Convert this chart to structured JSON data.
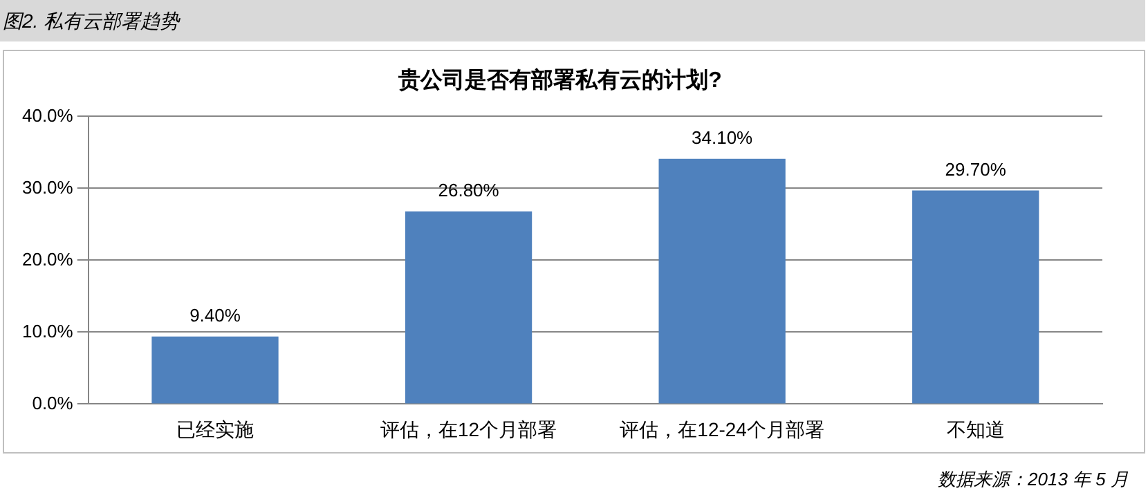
{
  "chart_data": {
    "type": "bar",
    "title": "贵公司是否有部署私有云的计划?",
    "categories": [
      "已经实施",
      "评估，在12个月部署",
      "评估，在12-24个月部署",
      "不知道"
    ],
    "values": [
      9.4,
      26.8,
      34.1,
      29.7
    ],
    "value_labels": [
      "9.40%",
      "26.80%",
      "34.10%",
      "29.70%"
    ],
    "color": "#4f81bd",
    "ylim": [
      0,
      40
    ],
    "yticks": [
      {
        "value": 0,
        "label": "0.0%"
      },
      {
        "value": 10,
        "label": "10.0%"
      },
      {
        "value": 20,
        "label": "20.0%"
      },
      {
        "value": 30,
        "label": "30.0%"
      },
      {
        "value": 40,
        "label": "40.0%"
      }
    ],
    "grid": "y",
    "legend": false,
    "annotations": [
      "图2. 私有云部署趋势",
      "数据来源：2013 年 5 月"
    ]
  }
}
